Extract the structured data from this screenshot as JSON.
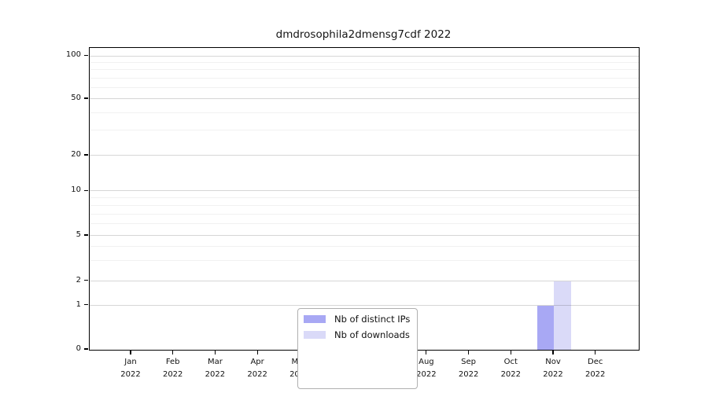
{
  "title": "dmdrosophila2dmensg7cdf 2022",
  "chart_data": {
    "type": "bar",
    "categories": [
      "Jan 2022",
      "Feb 2022",
      "Mar 2022",
      "Apr 2022",
      "May 2022",
      "Jun 2022",
      "Jul 2022",
      "Aug 2022",
      "Sep 2022",
      "Oct 2022",
      "Nov 2022",
      "Dec 2022"
    ],
    "series": [
      {
        "name": "Nb of distinct IPs",
        "color": "#a8a8f4",
        "values": [
          0,
          0,
          0,
          0,
          0,
          0,
          0,
          0,
          0,
          0,
          1,
          0
        ]
      },
      {
        "name": "Nb of downloads",
        "color": "#dadaf8",
        "values": [
          0,
          0,
          0,
          0,
          0,
          0,
          0,
          0,
          0,
          0,
          2,
          0
        ]
      }
    ],
    "title": "dmdrosophila2dmensg7cdf 2022",
    "xlabel": "",
    "ylabel": "",
    "yticks": [
      0,
      1,
      2,
      5,
      10,
      20,
      50,
      100
    ],
    "ylim": [
      0,
      110
    ],
    "yscale": "log-like with linear segment below 1",
    "grid": "horizontal major and log-minor gridlines",
    "legend_position": "bottom-center-inside",
    "minor_gridline_values": [
      3,
      4,
      6,
      7,
      8,
      9,
      30,
      40,
      60,
      70,
      80,
      90
    ]
  },
  "legend": {
    "items": [
      {
        "label": "Nb of distinct IPs",
        "color": "#a8a8f4"
      },
      {
        "label": "Nb of downloads",
        "color": "#dadaf8"
      }
    ]
  }
}
